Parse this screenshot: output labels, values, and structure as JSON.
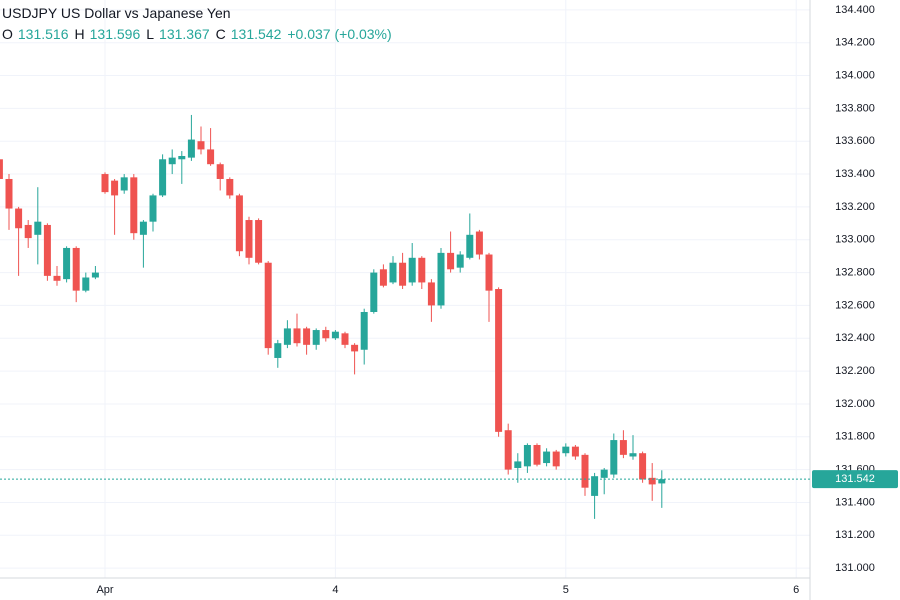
{
  "chart_data": {
    "type": "candlestick",
    "title": "USDJPY US Dollar vs Japanese Yen",
    "ohlc_legend": [
      {
        "label": "O",
        "value": "131.516"
      },
      {
        "label": "H",
        "value": "131.596"
      },
      {
        "label": "L",
        "value": "131.367"
      },
      {
        "label": "C",
        "value": "131.542"
      }
    ],
    "change": "+0.037 (+0.03%)",
    "categories": [
      null,
      null,
      null,
      null,
      null,
      null,
      null,
      null,
      null,
      null,
      null,
      "Apr",
      null,
      null,
      null,
      null,
      null,
      null,
      null,
      null,
      null,
      null,
      null,
      null,
      null,
      null,
      null,
      null,
      null,
      null,
      null,
      null,
      null,
      null,
      null,
      "4",
      null,
      null,
      null,
      null,
      null,
      null,
      null,
      null,
      null,
      null,
      null,
      null,
      null,
      null,
      null,
      null,
      null,
      null,
      null,
      null,
      null,
      null,
      null,
      "5",
      null,
      null,
      null,
      null,
      null,
      null,
      null,
      null,
      null,
      null,
      null,
      null,
      null,
      null,
      null,
      null,
      null,
      null,
      null,
      null,
      null,
      null,
      null,
      "6",
      null
    ],
    "open": [
      133.49,
      133.37,
      133.19,
      133.09,
      133.03,
      133.09,
      132.78,
      132.76,
      132.95,
      132.69,
      132.77,
      133.4,
      133.36,
      133.3,
      133.38,
      133.03,
      133.11,
      133.27,
      133.46,
      133.49,
      133.5,
      133.6,
      133.55,
      133.46,
      133.37,
      133.27,
      133.12,
      133.12,
      132.86,
      132.28,
      132.36,
      132.46,
      132.46,
      132.36,
      132.45,
      132.4,
      132.43,
      132.36,
      132.33,
      132.56,
      132.82,
      132.74,
      132.86,
      132.74,
      132.89,
      132.74,
      132.6,
      132.92,
      132.83,
      132.89,
      133.05,
      132.91,
      132.7,
      131.84,
      131.61,
      131.62,
      131.75,
      131.64,
      131.71,
      131.7,
      131.74,
      131.69,
      131.44,
      131.55,
      131.57,
      131.78,
      131.68,
      131.7,
      131.55,
      131.516,
      null,
      null,
      null,
      null,
      null,
      null,
      null,
      null,
      null,
      null,
      null,
      null,
      null,
      null,
      null
    ],
    "high": [
      133.5,
      133.4,
      133.2,
      133.12,
      133.32,
      133.1,
      132.84,
      132.96,
      132.96,
      132.8,
      132.84,
      133.41,
      133.37,
      133.4,
      133.4,
      133.12,
      133.28,
      133.52,
      133.55,
      133.54,
      133.76,
      133.69,
      133.68,
      133.47,
      133.38,
      133.28,
      133.14,
      133.13,
      132.87,
      132.39,
      132.51,
      132.55,
      132.47,
      132.46,
      132.47,
      132.45,
      132.44,
      132.37,
      132.58,
      132.82,
      132.85,
      132.9,
      132.92,
      132.98,
      132.9,
      132.76,
      132.95,
      133.05,
      132.93,
      133.16,
      133.06,
      132.92,
      132.71,
      131.88,
      131.7,
      131.76,
      131.76,
      131.73,
      131.72,
      131.76,
      131.75,
      131.7,
      131.58,
      131.61,
      131.82,
      131.84,
      131.81,
      131.71,
      131.64,
      131.596,
      null,
      null,
      null,
      null,
      null,
      null,
      null,
      null,
      null,
      null,
      null,
      null,
      null,
      null,
      null
    ],
    "low": [
      133.3,
      133.06,
      132.78,
      132.95,
      132.85,
      132.75,
      132.72,
      132.74,
      132.62,
      132.68,
      132.76,
      133.28,
      133.03,
      133.28,
      133.0,
      132.83,
      133.05,
      133.26,
      133.4,
      133.34,
      133.48,
      133.52,
      133.45,
      133.3,
      133.25,
      132.9,
      132.85,
      132.85,
      132.3,
      132.22,
      132.34,
      132.35,
      132.3,
      132.33,
      132.38,
      132.39,
      132.34,
      132.18,
      132.24,
      132.55,
      132.71,
      132.73,
      132.7,
      132.72,
      132.7,
      132.5,
      132.58,
      132.8,
      132.8,
      132.88,
      132.88,
      132.5,
      131.8,
      131.57,
      131.52,
      131.58,
      131.62,
      131.62,
      131.6,
      131.68,
      131.66,
      131.44,
      131.3,
      131.45,
      131.55,
      131.67,
      131.66,
      131.52,
      131.41,
      131.367,
      null,
      null,
      null,
      null,
      null,
      null,
      null,
      null,
      null,
      null,
      null,
      null,
      null,
      null,
      null
    ],
    "close": [
      133.37,
      133.19,
      133.07,
      133.01,
      133.11,
      132.78,
      132.75,
      132.95,
      132.69,
      132.77,
      132.8,
      133.29,
      133.27,
      133.38,
      133.04,
      133.11,
      133.27,
      133.49,
      133.5,
      133.51,
      133.61,
      133.55,
      133.46,
      133.37,
      133.27,
      132.93,
      132.89,
      132.86,
      132.34,
      132.37,
      132.46,
      132.37,
      132.36,
      132.45,
      132.4,
      132.44,
      132.36,
      132.32,
      132.56,
      132.8,
      132.72,
      132.86,
      132.72,
      132.89,
      132.74,
      132.6,
      132.92,
      132.82,
      132.91,
      133.03,
      132.91,
      132.69,
      131.83,
      131.6,
      131.65,
      131.75,
      131.63,
      131.71,
      131.62,
      131.74,
      131.68,
      131.49,
      131.56,
      131.6,
      131.78,
      131.69,
      131.7,
      131.54,
      131.51,
      131.542,
      null,
      null,
      null,
      null,
      null,
      null,
      null,
      null,
      null,
      null,
      null,
      null,
      null,
      null,
      null
    ],
    "up_color": "#26a69a",
    "down_color": "#ef5350",
    "last_price": {
      "value": 131.542,
      "label": "131.542"
    },
    "ylim": [
      130.94,
      134.46
    ],
    "yticks": [
      {
        "value": 131.0,
        "label": "131.000"
      },
      {
        "value": 131.2,
        "label": "131.200"
      },
      {
        "value": 131.4,
        "label": "131.400"
      },
      {
        "value": 131.6,
        "label": "131.600"
      },
      {
        "value": 131.8,
        "label": "131.800"
      },
      {
        "value": 132.0,
        "label": "132.000"
      },
      {
        "value": 132.2,
        "label": "132.200"
      },
      {
        "value": 132.4,
        "label": "132.400"
      },
      {
        "value": 132.6,
        "label": "132.600"
      },
      {
        "value": 132.8,
        "label": "132.800"
      },
      {
        "value": 133.0,
        "label": "133.000"
      },
      {
        "value": 133.2,
        "label": "133.200"
      },
      {
        "value": 133.4,
        "label": "133.400"
      },
      {
        "value": 133.6,
        "label": "133.600"
      },
      {
        "value": 133.8,
        "label": "133.800"
      },
      {
        "value": 134.0,
        "label": "134.000"
      },
      {
        "value": 134.2,
        "label": "134.200"
      },
      {
        "value": 134.4,
        "label": "134.400"
      }
    ],
    "grid": true
  }
}
